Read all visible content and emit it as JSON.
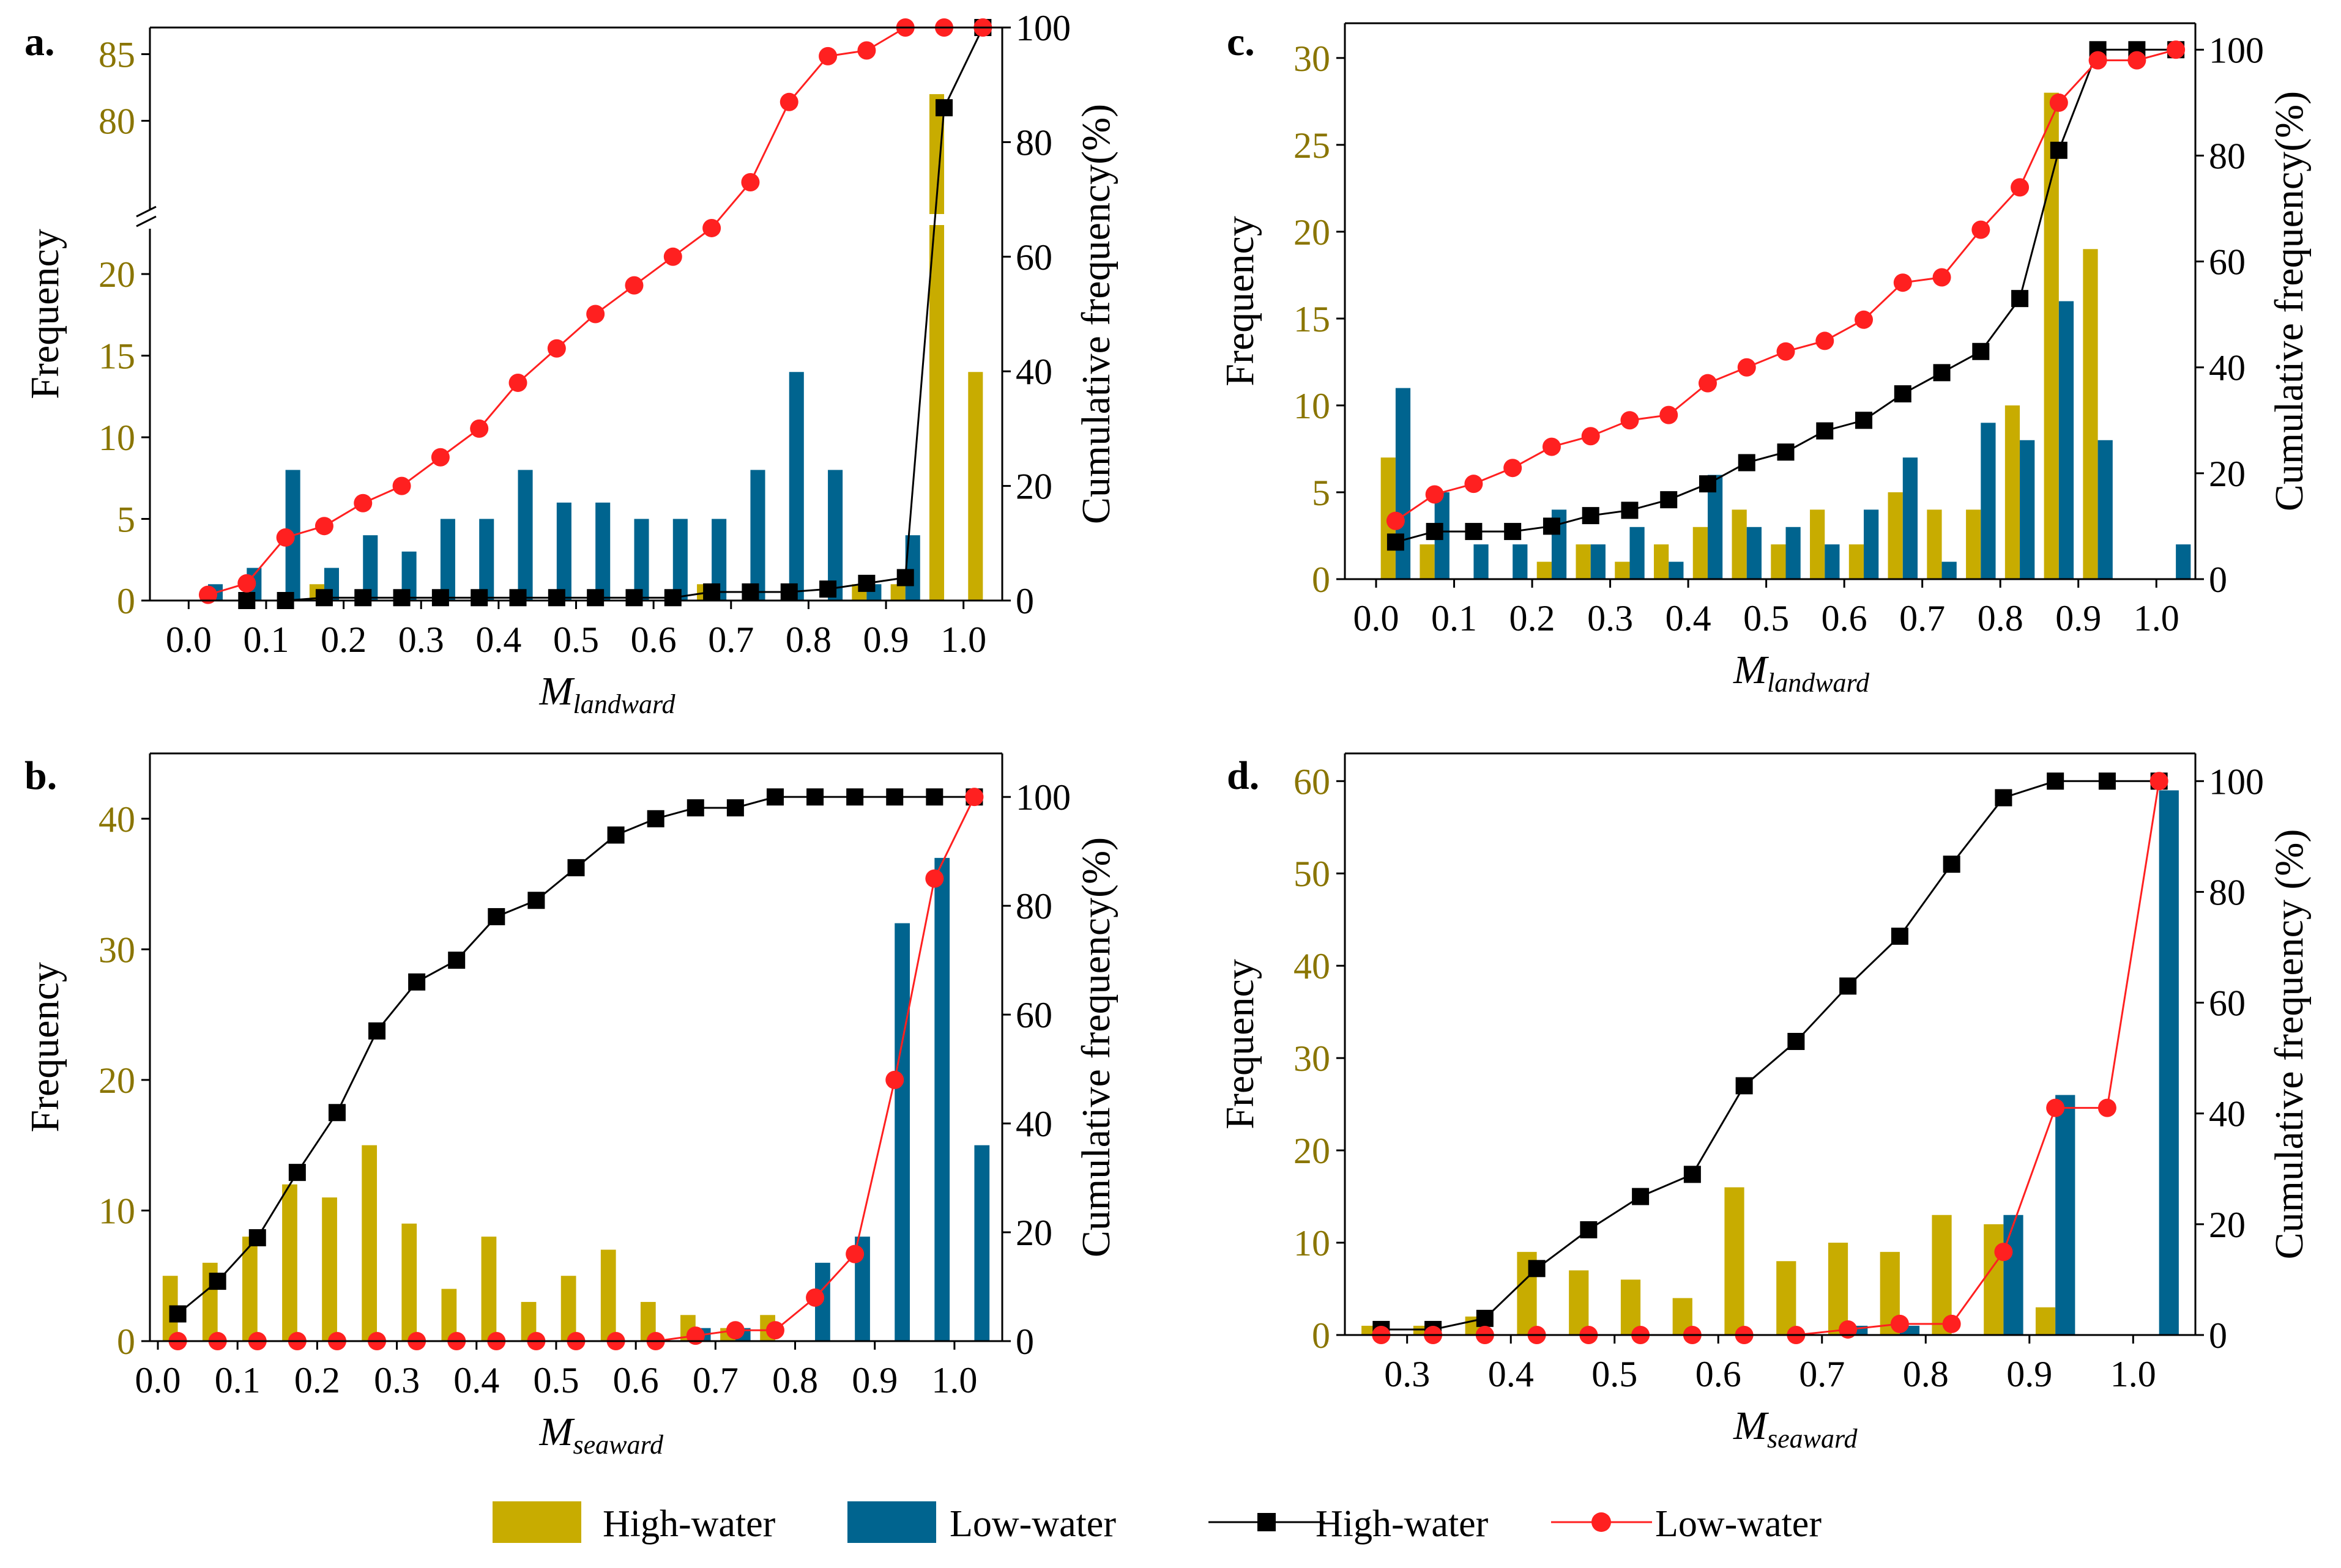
{
  "colors": {
    "high_bar": "#c8ac00",
    "low_bar": "#00648f",
    "high_line": "#000000",
    "low_line": "#ff2020",
    "tick_left": "#8a7500"
  },
  "legend": {
    "items": [
      {
        "label": "High-water",
        "kind": "bar",
        "color_key": "high_bar"
      },
      {
        "label": "Low-water",
        "kind": "bar",
        "color_key": "low_bar"
      },
      {
        "label": "High-water",
        "kind": "line-square",
        "color_key": "high_line"
      },
      {
        "label": "Low-water",
        "kind": "line-circle",
        "color_key": "low_line"
      }
    ]
  },
  "chart_data": [
    {
      "panel": "a.",
      "type": "bar",
      "xlabel_main": "M",
      "xlabel_sub": "landward",
      "ylabel": "Frequency",
      "y2label": "Cumulative frequency(%)",
      "y_broken": true,
      "ylim_lower": [
        0,
        23
      ],
      "ylim_upper": [
        73,
        87
      ],
      "yticks_lower": [
        0,
        5,
        10,
        15,
        20
      ],
      "yticks_upper": [
        80,
        85
      ],
      "y2lim": [
        0,
        100
      ],
      "y2ticks": [
        0,
        20,
        40,
        60,
        80,
        100
      ],
      "xlim": [
        -0.05,
        1.05
      ],
      "xticks": [
        "0.0",
        "0.1",
        "0.2",
        "0.3",
        "0.4",
        "0.5",
        "0.6",
        "0.7",
        "0.8",
        "0.9",
        "1.0"
      ],
      "bin_centers": [
        0.025,
        0.075,
        0.125,
        0.175,
        0.225,
        0.275,
        0.325,
        0.375,
        0.425,
        0.475,
        0.525,
        0.575,
        0.625,
        0.675,
        0.725,
        0.775,
        0.825,
        0.875,
        0.925,
        0.975,
        1.025
      ],
      "series": [
        {
          "name": "High-water",
          "kind": "bar",
          "values": [
            0,
            0,
            0,
            1,
            0,
            0,
            0,
            0,
            0,
            0,
            0,
            0,
            0,
            1,
            0,
            0,
            0,
            1,
            1,
            82,
            14
          ]
        },
        {
          "name": "Low-water",
          "kind": "bar",
          "values": [
            1,
            2,
            8,
            2,
            4,
            3,
            5,
            5,
            8,
            6,
            6,
            5,
            5,
            5,
            8,
            14,
            8,
            1,
            4,
            0,
            0
          ]
        },
        {
          "name": "High-water",
          "kind": "line-square",
          "values": [
            null,
            0,
            0,
            0.5,
            0.5,
            0.5,
            0.5,
            0.5,
            0.5,
            0.5,
            0.5,
            0.5,
            0.5,
            1.5,
            1.5,
            1.5,
            2,
            3,
            4,
            86,
            100
          ]
        },
        {
          "name": "Low-water",
          "kind": "line-circle",
          "values": [
            1,
            3,
            11,
            13,
            17,
            20,
            25,
            30,
            38,
            44,
            50,
            55,
            60,
            65,
            73,
            87,
            95,
            96,
            100,
            100,
            100
          ]
        }
      ]
    },
    {
      "panel": "b.",
      "type": "bar",
      "xlabel_main": "M",
      "xlabel_sub": "seaward",
      "ylabel": "Frequency",
      "y2label": "Cumulative frequency(%)",
      "y_broken": false,
      "ylim": [
        0,
        45
      ],
      "yticks": [
        0,
        10,
        20,
        30,
        40
      ],
      "y2lim": [
        0,
        108
      ],
      "y2ticks": [
        0,
        20,
        40,
        60,
        80,
        100
      ],
      "xlim": [
        -0.01,
        1.06
      ],
      "xticks": [
        "0.0",
        "0.1",
        "0.2",
        "0.3",
        "0.4",
        "0.5",
        "0.6",
        "0.7",
        "0.8",
        "0.9",
        "1.0"
      ],
      "bin_centers": [
        0.025,
        0.075,
        0.125,
        0.175,
        0.225,
        0.275,
        0.325,
        0.375,
        0.425,
        0.475,
        0.525,
        0.575,
        0.625,
        0.675,
        0.725,
        0.775,
        0.825,
        0.875,
        0.925,
        0.975,
        1.025
      ],
      "series": [
        {
          "name": "High-water",
          "kind": "bar",
          "values": [
            5,
            6,
            8,
            12,
            11,
            15,
            9,
            4,
            8,
            3,
            5,
            7,
            3,
            2,
            1,
            2,
            0,
            0,
            0,
            0,
            0
          ]
        },
        {
          "name": "Low-water",
          "kind": "bar",
          "values": [
            0,
            0,
            0,
            0,
            0,
            0,
            0,
            0,
            0,
            0,
            0,
            0,
            0,
            1,
            1,
            0,
            6,
            8,
            32,
            37,
            15
          ]
        },
        {
          "name": "High-water",
          "kind": "line-square",
          "values": [
            5,
            11,
            19,
            31,
            42,
            57,
            66,
            70,
            78,
            81,
            87,
            93,
            96,
            98,
            98,
            100,
            100,
            100,
            100,
            100,
            100
          ]
        },
        {
          "name": "Low-water",
          "kind": "line-circle",
          "values": [
            0,
            0,
            0,
            0,
            0,
            0,
            0,
            0,
            0,
            0,
            0,
            0,
            0,
            1,
            2,
            2,
            8,
            16,
            48,
            85,
            100
          ]
        }
      ]
    },
    {
      "panel": "c.",
      "type": "bar",
      "xlabel_main": "M",
      "xlabel_sub": "landward",
      "ylabel": "Frequency",
      "y2label": "Cumulative frequency(%)",
      "y_broken": false,
      "ylim": [
        0,
        32
      ],
      "yticks": [
        0,
        5,
        10,
        15,
        20,
        25,
        30
      ],
      "y2lim": [
        0,
        105
      ],
      "y2ticks": [
        0,
        20,
        40,
        60,
        80,
        100
      ],
      "xlim": [
        -0.04,
        1.05
      ],
      "xticks": [
        "0.0",
        "0.1",
        "0.2",
        "0.3",
        "0.4",
        "0.5",
        "0.6",
        "0.7",
        "0.8",
        "0.9",
        "1.0"
      ],
      "bin_centers": [
        0.025,
        0.075,
        0.125,
        0.175,
        0.225,
        0.275,
        0.325,
        0.375,
        0.425,
        0.475,
        0.525,
        0.575,
        0.625,
        0.675,
        0.725,
        0.775,
        0.825,
        0.875,
        0.925,
        0.975,
        1.025
      ],
      "series": [
        {
          "name": "High-water",
          "kind": "bar",
          "values": [
            7,
            2,
            0,
            0,
            1,
            2,
            1,
            2,
            3,
            4,
            2,
            4,
            2,
            5,
            4,
            4,
            10,
            28,
            19,
            0,
            0
          ]
        },
        {
          "name": "Low-water",
          "kind": "bar",
          "values": [
            11,
            5,
            2,
            2,
            4,
            2,
            3,
            1,
            6,
            3,
            3,
            2,
            4,
            7,
            1,
            9,
            8,
            16,
            8,
            0,
            2
          ]
        },
        {
          "name": "High-water",
          "kind": "line-square",
          "values": [
            7,
            9,
            9,
            9,
            10,
            12,
            13,
            15,
            18,
            22,
            24,
            28,
            30,
            35,
            39,
            43,
            53,
            81,
            100,
            100,
            100
          ]
        },
        {
          "name": "Low-water",
          "kind": "line-circle",
          "values": [
            11,
            16,
            18,
            21,
            25,
            27,
            30,
            31,
            37,
            40,
            43,
            45,
            49,
            56,
            57,
            66,
            74,
            90,
            98,
            98,
            100
          ]
        }
      ]
    },
    {
      "panel": "d.",
      "type": "bar",
      "xlabel_main": "M",
      "xlabel_sub": "seaward",
      "ylabel": "Frequency",
      "y2label": "Cumulative frequency (%)",
      "y_broken": false,
      "ylim": [
        0,
        63
      ],
      "yticks": [
        0,
        10,
        20,
        30,
        40,
        50,
        60
      ],
      "y2lim": [
        0,
        105
      ],
      "y2ticks": [
        0,
        20,
        40,
        60,
        80,
        100
      ],
      "xlim": [
        0.24,
        1.06
      ],
      "xticks": [
        "0.3",
        "0.4",
        "0.5",
        "0.6",
        "0.7",
        "0.8",
        "0.9",
        "1.0"
      ],
      "xtick_values": [
        0.3,
        0.4,
        0.5,
        0.6,
        0.7,
        0.8,
        0.9,
        1.0
      ],
      "bin_centers": [
        0.275,
        0.325,
        0.375,
        0.425,
        0.475,
        0.525,
        0.575,
        0.625,
        0.675,
        0.725,
        0.775,
        0.825,
        0.875,
        0.925,
        0.975,
        1.025
      ],
      "series": [
        {
          "name": "High-water",
          "kind": "bar",
          "values": [
            1,
            1,
            2,
            9,
            7,
            6,
            4,
            16,
            8,
            10,
            9,
            13,
            12,
            3,
            0,
            0
          ]
        },
        {
          "name": "Low-water",
          "kind": "bar",
          "values": [
            0,
            0,
            0,
            0,
            0,
            0,
            0,
            0,
            0,
            1,
            1,
            0,
            13,
            26,
            0,
            59
          ]
        },
        {
          "name": "High-water",
          "kind": "line-square",
          "values": [
            1,
            1,
            3,
            12,
            19,
            25,
            29,
            45,
            53,
            63,
            72,
            85,
            97,
            100,
            100,
            100
          ]
        },
        {
          "name": "Low-water",
          "kind": "line-circle",
          "values": [
            0,
            0,
            0,
            0,
            0,
            0,
            0,
            0,
            0,
            1,
            2,
            2,
            15,
            41,
            41,
            100
          ]
        }
      ]
    }
  ]
}
